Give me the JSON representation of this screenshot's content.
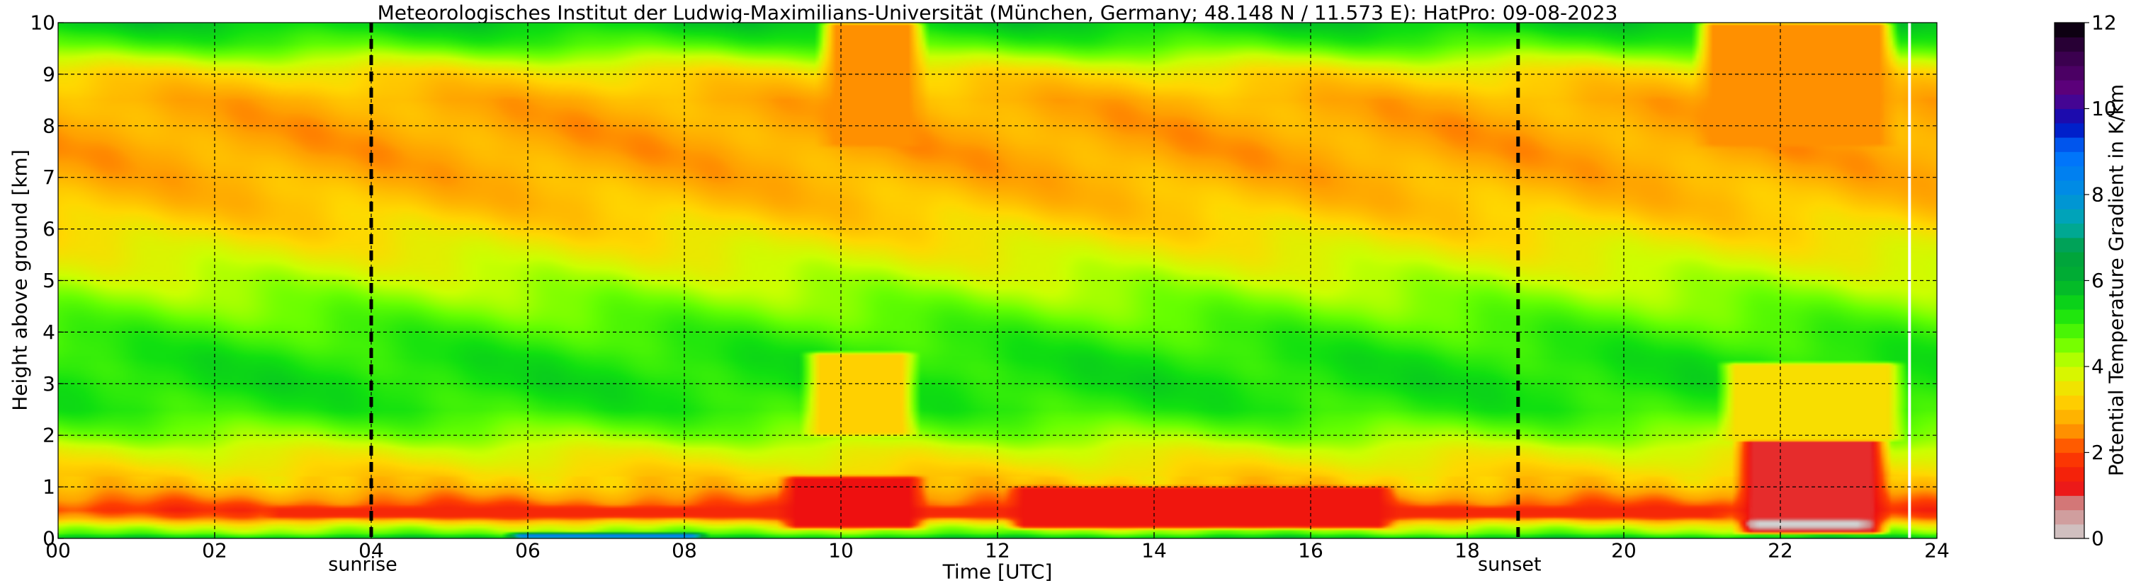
{
  "chart_data": {
    "type": "heatmap",
    "title": "Meteorologisches Institut der Ludwig-Maximilians-Universität (München, Germany; 48.148 N / 11.573 E):    HatPro: 09-08-2023",
    "xlabel": "Time [UTC]",
    "ylabel": "Height above ground [km]",
    "xlim": [
      0,
      24
    ],
    "ylim": [
      0,
      10
    ],
    "x_ticks": [
      "00",
      "02",
      "04",
      "06",
      "08",
      "10",
      "12",
      "14",
      "16",
      "18",
      "20",
      "22",
      "24"
    ],
    "y_ticks": [
      "0",
      "1",
      "2",
      "3",
      "4",
      "5",
      "6",
      "7",
      "8",
      "9",
      "10"
    ],
    "grid": true,
    "colorbar": {
      "label": "Potential Temperature Gradient in K/km",
      "range": [
        0,
        12
      ],
      "ticks": [
        "0",
        "2",
        "4",
        "6",
        "8",
        "10",
        "12"
      ],
      "colors": [
        {
          "v": 0.0,
          "c": "#d0d0d0"
        },
        {
          "v": 0.8,
          "c": "#d08080"
        },
        {
          "v": 1.2,
          "c": "#ee1010"
        },
        {
          "v": 2.0,
          "c": "#ff4000"
        },
        {
          "v": 2.6,
          "c": "#ffa000"
        },
        {
          "v": 3.3,
          "c": "#ffd800"
        },
        {
          "v": 4.0,
          "c": "#ccff00"
        },
        {
          "v": 4.6,
          "c": "#66ff00"
        },
        {
          "v": 5.3,
          "c": "#10e010"
        },
        {
          "v": 6.0,
          "c": "#00b030"
        },
        {
          "v": 6.7,
          "c": "#00a040"
        },
        {
          "v": 7.3,
          "c": "#00aaaa"
        },
        {
          "v": 8.0,
          "c": "#0090e0"
        },
        {
          "v": 9.0,
          "c": "#0070ff"
        },
        {
          "v": 9.6,
          "c": "#0010c0"
        },
        {
          "v": 10.4,
          "c": "#600080"
        },
        {
          "v": 11.4,
          "c": "#300040"
        },
        {
          "v": 12.0,
          "c": "#000000"
        }
      ]
    },
    "vertical_markers": [
      {
        "x": 4.0,
        "label": "sunrise"
      },
      {
        "x": 18.65,
        "label": "sunset"
      }
    ],
    "missing_data_at": 23.65,
    "profile": {
      "heights_km": [
        0.0,
        0.1,
        0.25,
        0.4,
        0.55,
        0.75,
        1.0,
        1.3,
        1.7,
        2.0,
        2.5,
        3.0,
        3.5,
        4.0,
        4.5,
        5.0,
        5.5,
        6.0,
        6.5,
        7.0,
        7.5,
        8.0,
        8.5,
        9.0,
        9.3,
        9.6,
        10.0
      ],
      "gradient_K_per_km": [
        5.8,
        4.6,
        3.8,
        2.4,
        1.8,
        2.4,
        3.0,
        3.3,
        3.8,
        4.4,
        5.1,
        5.3,
        5.2,
        4.9,
        4.5,
        4.1,
        3.7,
        3.3,
        3.0,
        2.8,
        2.7,
        2.7,
        2.8,
        3.3,
        4.1,
        4.9,
        5.6
      ]
    },
    "events": [
      {
        "type": "inversion_layer",
        "x": [
          2.7,
          21.2
        ],
        "y": [
          0.4,
          0.6
        ],
        "gradient": 1.6
      },
      {
        "type": "inversion_layer",
        "x": [
          12.2,
          17.0
        ],
        "y": [
          0.2,
          1.0
        ],
        "gradient": 1.3
      },
      {
        "type": "inversion_layer",
        "x": [
          9.3,
          11.0
        ],
        "y": [
          0.2,
          1.2
        ],
        "gradient": 1.2
      },
      {
        "type": "inversion_layer",
        "x": [
          21.5,
          23.3
        ],
        "y": [
          0.1,
          1.9
        ],
        "gradient": 1.1
      },
      {
        "type": "near_isentropic_core",
        "x": [
          21.6,
          23.1
        ],
        "y": [
          0.2,
          0.35
        ],
        "gradient": 0.0
      },
      {
        "type": "stable_anomaly",
        "x": [
          9.6,
          10.9
        ],
        "y": [
          2.0,
          3.6
        ],
        "gradient": 3.2
      },
      {
        "type": "stable_anomaly",
        "x": [
          21.3,
          23.5
        ],
        "y": [
          1.9,
          3.4
        ],
        "gradient": 3.4
      },
      {
        "type": "stable_anomaly",
        "x": [
          9.8,
          11.0
        ],
        "y": [
          7.6,
          10.0
        ],
        "gradient": 2.5
      },
      {
        "type": "stable_anomaly",
        "x": [
          21.0,
          23.4
        ],
        "y": [
          7.6,
          10.0
        ],
        "gradient": 2.5
      },
      {
        "type": "near_surface_unstable",
        "x": [
          5.8,
          8.2
        ],
        "y": [
          0.0,
          0.1
        ],
        "gradient": 8.5
      }
    ]
  }
}
